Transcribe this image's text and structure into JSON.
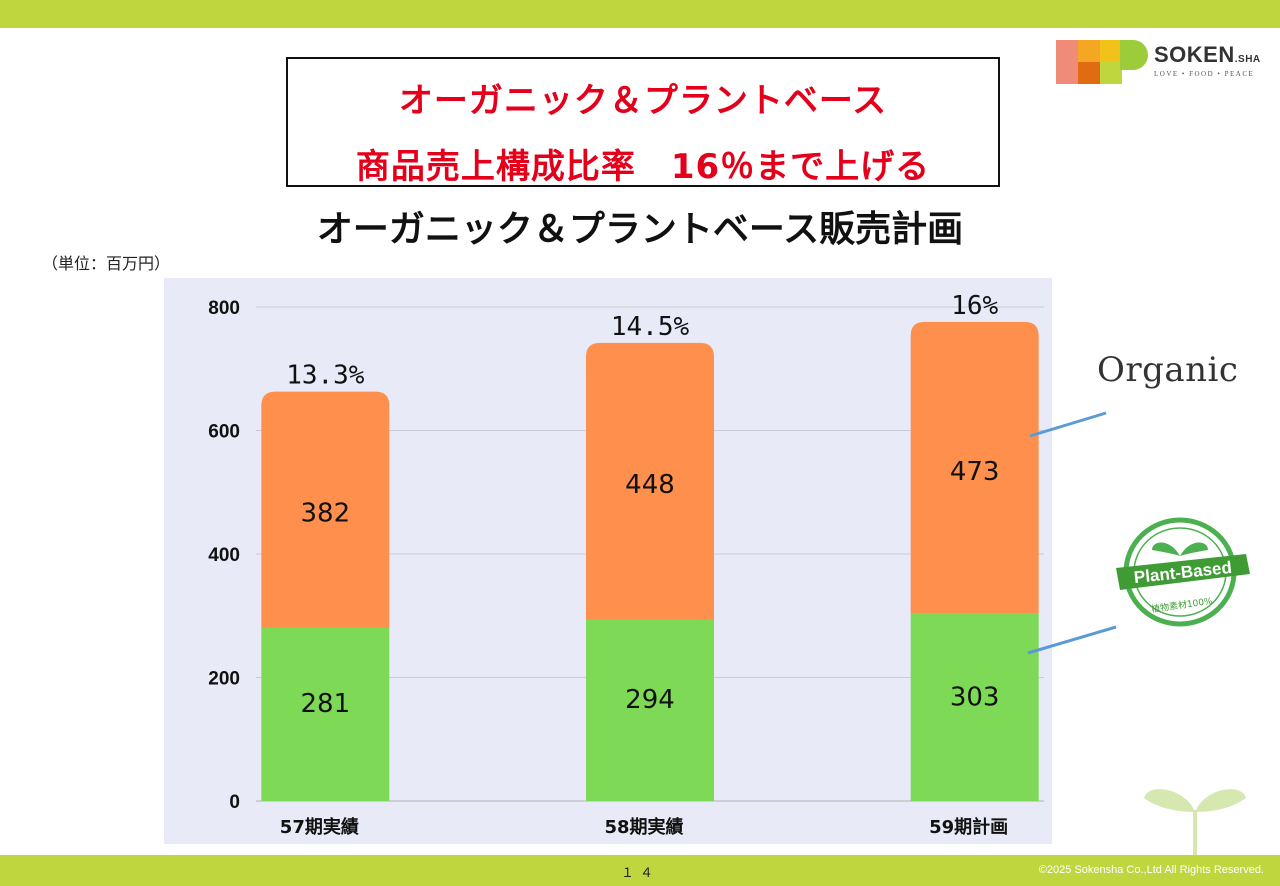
{
  "headline": {
    "line1": "オーガニック＆プラントベース",
    "line2": "商品売上構成比率　16％まで上げる"
  },
  "logo": {
    "brand": "SOKEN",
    "brand_suffix": ".SHA",
    "tagline": "LOVE • FOOD • PEACE"
  },
  "side_logos": {
    "organic": "Organic",
    "plant_based": "Plant-Based",
    "plant_based_sub": "植物素材100%"
  },
  "footer": {
    "page_number": "１４",
    "copyright": "©2025 Sokensha Co.,Ltd All Rights Reserved."
  },
  "colors": {
    "accent_bar": "#bfd63f",
    "headline_red": "#e4001b",
    "organic_series": "#ff8f4c",
    "plant_series": "#7ed957",
    "leader_line": "#5b9bd5"
  },
  "chart_data": {
    "type": "bar",
    "stacked": true,
    "title": "オーガニック＆プラントベース販売計画",
    "unit_label": "（単位：百万円）",
    "categories": [
      "57期実績",
      "58期実績",
      "59期計画"
    ],
    "series": [
      {
        "values": [
          281,
          294,
          303
        ],
        "color": "#7ed957"
      },
      {
        "values": [
          382,
          448,
          473
        ],
        "color": "#ff8f4c"
      }
    ],
    "annotations": [
      "13.3%",
      "14.5%",
      "16%"
    ],
    "ylim": [
      0,
      800
    ],
    "yticks": [
      0,
      200,
      400,
      600,
      800
    ],
    "grid": true
  }
}
